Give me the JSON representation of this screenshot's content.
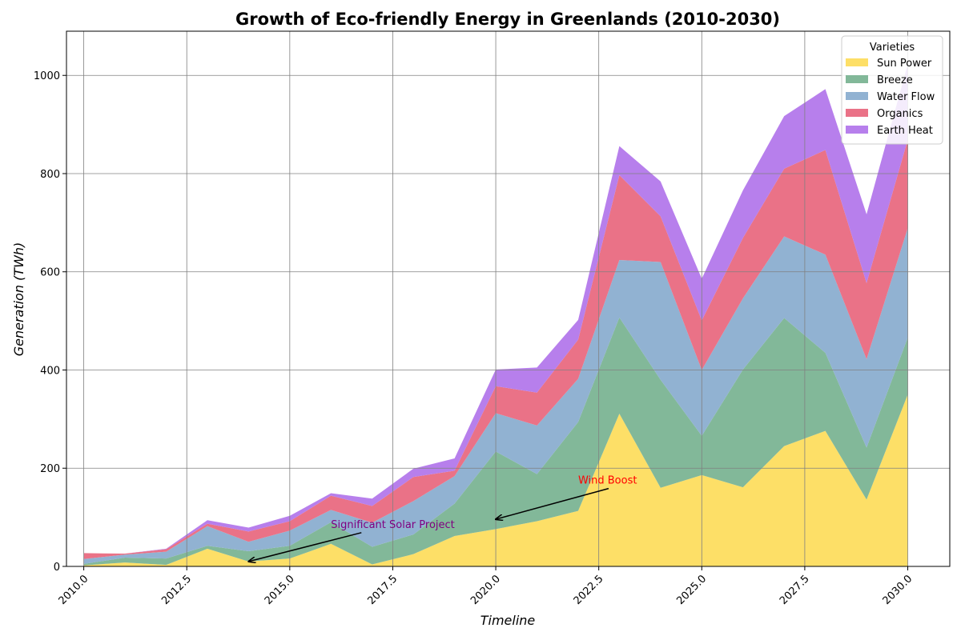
{
  "chart_data": {
    "type": "area",
    "stacked": true,
    "title": "Growth of Eco-friendly Energy in Greenlands (2010-2030)",
    "xlabel": "Timeline",
    "ylabel": "Generation (TWh)",
    "xlim": [
      2009.58,
      2031.02
    ],
    "ylim": [
      0,
      1090
    ],
    "grid": true,
    "legend": {
      "title": "Varieties",
      "placement": "top-right"
    },
    "x": [
      2010,
      2011,
      2012,
      2013,
      2014,
      2015,
      2016,
      2017,
      2018,
      2019,
      2020,
      2021,
      2022,
      2023,
      2024,
      2025,
      2026,
      2027,
      2028,
      2029,
      2030
    ],
    "x_ticks": [
      {
        "value": 2010.0,
        "label": "2010.0"
      },
      {
        "value": 2012.5,
        "label": "2012.5"
      },
      {
        "value": 2015.0,
        "label": "2015.0"
      },
      {
        "value": 2017.5,
        "label": "2017.5"
      },
      {
        "value": 2020.0,
        "label": "2020.0"
      },
      {
        "value": 2022.5,
        "label": "2022.5"
      },
      {
        "value": 2025.0,
        "label": "2025.0"
      },
      {
        "value": 2027.5,
        "label": "2027.5"
      },
      {
        "value": 2030.0,
        "label": "2030.0"
      }
    ],
    "y_ticks": [
      {
        "value": 0,
        "label": "0"
      },
      {
        "value": 200,
        "label": "200"
      },
      {
        "value": 400,
        "label": "400"
      },
      {
        "value": 600,
        "label": "600"
      },
      {
        "value": 800,
        "label": "800"
      },
      {
        "value": 1000,
        "label": "1000"
      }
    ],
    "series": [
      {
        "name": "Sun Power",
        "color": "#fddf67",
        "values": [
          2,
          8,
          3,
          36,
          10,
          16,
          46,
          4,
          25,
          62,
          76,
          92,
          113,
          311,
          160,
          186,
          161,
          245,
          276,
          136,
          350
        ]
      },
      {
        "name": "Breeze",
        "color": "#82b899",
        "values": [
          3,
          10,
          13,
          6,
          21,
          26,
          44,
          36,
          40,
          66,
          158,
          96,
          181,
          196,
          220,
          80,
          240,
          261,
          159,
          106,
          116
        ]
      },
      {
        "name": "Water Flow",
        "color": "#91b2d2",
        "values": [
          10,
          6,
          14,
          40,
          19,
          31,
          25,
          49,
          68,
          56,
          78,
          99,
          88,
          117,
          240,
          134,
          145,
          166,
          200,
          180,
          223
        ]
      },
      {
        "name": "Organics",
        "color": "#ea7287",
        "values": [
          12,
          2,
          5,
          5,
          21,
          19,
          29,
          34,
          49,
          11,
          55,
          67,
          80,
          173,
          93,
          101,
          123,
          138,
          213,
          155,
          180
        ]
      },
      {
        "name": "Earth Heat",
        "color": "#b77fec",
        "values": [
          0,
          0,
          1,
          7,
          8,
          11,
          5,
          15,
          17,
          25,
          34,
          51,
          40,
          59,
          71,
          85,
          97,
          107,
          124,
          140,
          154
        ]
      }
    ],
    "annotations": [
      {
        "text": "Significant Solar Project",
        "color": "#800080",
        "text_x": 2016.0,
        "text_y": 85,
        "arrow_x": 2014,
        "arrow_y": 10
      },
      {
        "text": "Wind Boost",
        "color": "#ff0000",
        "text_x": 2022.0,
        "text_y": 175,
        "arrow_x": 2020,
        "arrow_y": 96
      }
    ]
  }
}
